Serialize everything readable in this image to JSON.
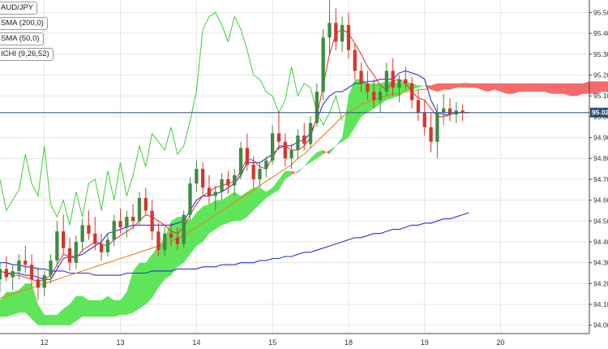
{
  "legend": [
    {
      "label": "AUD/JPY"
    },
    {
      "label": "SMA (200,0)"
    },
    {
      "label": "SMA (50,0)"
    },
    {
      "label": "ICHI (9,26,52)"
    }
  ],
  "current_price": {
    "label": "95.02",
    "value": 95.02
  },
  "colors": {
    "up": "#3d8c40",
    "down": "#d2382e",
    "sma200": "#2733d6",
    "sma50": "#f07d1e",
    "tenkan": "#e8271e",
    "kijun": "#1b1fd6",
    "chikou": "#3bd137",
    "kumo_bull": "#5fe55a",
    "kumo_bear": "#f56b6b",
    "price_line": "#2f4f7f",
    "grid": "#e6e6e6"
  },
  "chart_data": {
    "type": "line",
    "x_axis": {
      "ticks": [
        "12",
        "13",
        "14",
        "15",
        "18",
        "19",
        "20"
      ],
      "range": [
        0,
        93
      ]
    },
    "y_axis": {
      "ticks": [
        "94.00",
        "94.10",
        "94.20",
        "94.30",
        "94.40",
        "94.50",
        "94.60",
        "94.70",
        "94.80",
        "94.90",
        "95.00",
        "95.10",
        "95.20",
        "95.30",
        "95.40",
        "95.50"
      ],
      "range": [
        93.96,
        95.56
      ]
    },
    "candles": [
      [
        94.22,
        94.3,
        94.16,
        94.27
      ],
      [
        94.27,
        94.33,
        94.21,
        94.23
      ],
      [
        94.23,
        94.29,
        94.17,
        94.26
      ],
      [
        94.26,
        94.34,
        94.22,
        94.31
      ],
      [
        94.31,
        94.38,
        94.25,
        94.29
      ],
      [
        94.29,
        94.34,
        94.19,
        94.22
      ],
      [
        94.22,
        94.28,
        94.12,
        94.18
      ],
      [
        94.18,
        94.26,
        94.14,
        94.24
      ],
      [
        94.24,
        94.34,
        94.2,
        94.31
      ],
      [
        94.31,
        94.5,
        94.28,
        94.45
      ],
      [
        94.45,
        94.53,
        94.34,
        94.37
      ],
      [
        94.37,
        94.42,
        94.26,
        94.3
      ],
      [
        94.3,
        94.43,
        94.27,
        94.4
      ],
      [
        94.4,
        94.51,
        94.35,
        94.48
      ],
      [
        94.48,
        94.55,
        94.41,
        94.44
      ],
      [
        94.44,
        94.52,
        94.36,
        94.39
      ],
      [
        94.39,
        94.44,
        94.31,
        94.35
      ],
      [
        94.35,
        94.44,
        94.33,
        94.41
      ],
      [
        94.41,
        94.53,
        94.38,
        94.5
      ],
      [
        94.5,
        94.56,
        94.44,
        94.47
      ],
      [
        94.47,
        94.55,
        94.42,
        94.52
      ],
      [
        94.52,
        94.58,
        94.46,
        94.5
      ],
      [
        94.5,
        94.64,
        94.48,
        94.61
      ],
      [
        94.61,
        94.66,
        94.53,
        94.55
      ],
      [
        94.55,
        94.6,
        94.41,
        94.45
      ],
      [
        94.45,
        94.49,
        94.33,
        94.36
      ],
      [
        94.36,
        94.47,
        94.33,
        94.44
      ],
      [
        94.44,
        94.49,
        94.38,
        94.42
      ],
      [
        94.42,
        94.47,
        94.36,
        94.39
      ],
      [
        94.39,
        94.55,
        94.37,
        94.53
      ],
      [
        94.53,
        94.71,
        94.5,
        94.68
      ],
      [
        94.68,
        94.79,
        94.64,
        94.75
      ],
      [
        94.75,
        94.78,
        94.62,
        94.66
      ],
      [
        94.66,
        94.72,
        94.58,
        94.62
      ],
      [
        94.62,
        94.67,
        94.55,
        94.64
      ],
      [
        94.64,
        94.73,
        94.6,
        94.7
      ],
      [
        94.7,
        94.74,
        94.63,
        94.67
      ],
      [
        94.67,
        94.75,
        94.62,
        94.72
      ],
      [
        94.72,
        94.88,
        94.7,
        94.85
      ],
      [
        94.85,
        94.92,
        94.74,
        94.77
      ],
      [
        94.77,
        94.81,
        94.66,
        94.7
      ],
      [
        94.7,
        94.78,
        94.66,
        94.75
      ],
      [
        94.75,
        94.81,
        94.71,
        94.79
      ],
      [
        94.79,
        94.96,
        94.77,
        94.92
      ],
      [
        94.92,
        95.02,
        94.85,
        94.88
      ],
      [
        94.88,
        94.92,
        94.76,
        94.8
      ],
      [
        94.8,
        94.87,
        94.75,
        94.84
      ],
      [
        94.84,
        94.94,
        94.8,
        94.91
      ],
      [
        94.91,
        94.97,
        94.84,
        94.87
      ],
      [
        94.87,
        95.0,
        94.85,
        94.97
      ],
      [
        94.97,
        95.16,
        94.95,
        95.12
      ],
      [
        95.12,
        95.42,
        95.08,
        95.38
      ],
      [
        95.38,
        95.56,
        95.3,
        95.45
      ],
      [
        95.45,
        95.52,
        95.32,
        95.36
      ],
      [
        95.36,
        95.48,
        95.31,
        95.44
      ],
      [
        95.44,
        95.5,
        95.28,
        95.32
      ],
      [
        95.32,
        95.35,
        95.18,
        95.22
      ],
      [
        95.22,
        95.26,
        95.12,
        95.16
      ],
      [
        95.16,
        95.22,
        95.08,
        95.12
      ],
      [
        95.12,
        95.18,
        95.04,
        95.08
      ],
      [
        95.08,
        95.14,
        95.02,
        95.12
      ],
      [
        95.12,
        95.26,
        95.1,
        95.22
      ],
      [
        95.22,
        95.28,
        95.1,
        95.14
      ],
      [
        95.14,
        95.2,
        95.07,
        95.18
      ],
      [
        95.18,
        95.24,
        95.13,
        95.16
      ],
      [
        95.16,
        95.19,
        95.04,
        95.08
      ],
      [
        95.08,
        95.13,
        94.98,
        95.02
      ],
      [
        95.02,
        95.08,
        94.91,
        94.95
      ],
      [
        94.95,
        95.02,
        94.83,
        94.88
      ],
      [
        94.88,
        95.06,
        94.8,
        95.02
      ],
      [
        95.02,
        95.11,
        94.96,
        95.04
      ],
      [
        95.04,
        95.09,
        94.98,
        95.01
      ],
      [
        95.01,
        95.07,
        94.97,
        95.03
      ],
      [
        95.03,
        95.06,
        94.98,
        95.02
      ]
    ],
    "sma200": [
      94.3,
      94.3,
      94.29,
      94.29,
      94.28,
      94.28,
      94.27,
      94.27,
      94.26,
      94.26,
      94.26,
      94.25,
      94.25,
      94.25,
      94.25,
      94.24,
      94.24,
      94.24,
      94.24,
      94.24,
      94.25,
      94.25,
      94.25,
      94.25,
      94.26,
      94.26,
      94.26,
      94.26,
      94.27,
      94.27,
      94.27,
      94.27,
      94.28,
      94.28,
      94.28,
      94.29,
      94.29,
      94.29,
      94.3,
      94.3,
      94.3,
      94.31,
      94.31,
      94.32,
      94.32,
      94.33,
      94.33,
      94.34,
      94.35,
      94.35,
      94.36,
      94.37,
      94.38,
      94.39,
      94.4,
      94.41,
      94.42,
      94.42,
      94.43,
      94.44,
      94.44,
      94.45,
      94.46,
      94.46,
      94.47,
      94.48,
      94.48,
      94.49,
      94.49,
      94.5,
      94.51,
      94.51,
      94.52,
      94.53,
      94.54
    ],
    "sma50": [
      94.13,
      94.14,
      94.15,
      94.16,
      94.17,
      94.18,
      94.19,
      94.2,
      94.21,
      94.22,
      94.23,
      94.24,
      94.25,
      94.26,
      94.27,
      94.28,
      94.29,
      94.3,
      94.31,
      94.32,
      94.33,
      94.34,
      94.35,
      94.36,
      94.37,
      94.38,
      94.39,
      94.4,
      94.42,
      94.43,
      94.45,
      94.47,
      94.49,
      94.51,
      94.53,
      94.55,
      94.57,
      94.59,
      94.61,
      94.63,
      94.65,
      94.67,
      94.69,
      94.71,
      94.73,
      94.75,
      94.77,
      94.8,
      94.82,
      94.85,
      94.88,
      94.91,
      94.94,
      94.97,
      95.0,
      95.02,
      95.04,
      95.06,
      95.07,
      95.08,
      95.09,
      95.1,
      95.11,
      95.11,
      95.12,
      95.12,
      95.13,
      95.13,
      95.14,
      95.14,
      95.14,
      95.15,
      95.15,
      95.16,
      95.16
    ],
    "tenkan": [
      94.26,
      94.25,
      94.24,
      94.24,
      94.23,
      94.22,
      94.21,
      94.22,
      94.24,
      94.29,
      94.34,
      94.33,
      94.32,
      94.36,
      94.38,
      94.4,
      94.39,
      94.38,
      94.41,
      94.43,
      94.45,
      94.47,
      94.5,
      94.53,
      94.52,
      94.5,
      94.48,
      94.45,
      94.44,
      94.47,
      94.53,
      94.58,
      94.62,
      94.64,
      94.66,
      94.67,
      94.68,
      94.69,
      94.74,
      94.8,
      94.79,
      94.76,
      94.75,
      94.8,
      94.86,
      94.86,
      94.84,
      94.84,
      94.86,
      94.9,
      95.0,
      95.15,
      95.3,
      95.4,
      95.42,
      95.4,
      95.35,
      95.3,
      95.24,
      95.2,
      95.15,
      95.13,
      95.17,
      95.18,
      95.16,
      95.12,
      95.09,
      95.08,
      95.04,
      95.0,
      95.0,
      95.01,
      95.02,
      95.02,
      95.02
    ],
    "kijun": [
      94.26,
      94.25,
      94.25,
      94.25,
      94.24,
      94.24,
      94.23,
      94.22,
      94.22,
      94.27,
      94.32,
      94.33,
      94.33,
      94.34,
      94.36,
      94.38,
      94.4,
      94.44,
      94.45,
      94.46,
      94.47,
      94.48,
      94.48,
      94.48,
      94.48,
      94.48,
      94.48,
      94.48,
      94.49,
      94.5,
      94.55,
      94.6,
      94.62,
      94.62,
      94.63,
      94.64,
      94.66,
      94.68,
      94.72,
      94.78,
      94.78,
      94.78,
      94.8,
      94.82,
      94.85,
      94.86,
      94.86,
      94.88,
      94.89,
      94.92,
      94.99,
      95.06,
      95.1,
      95.12,
      95.12,
      95.14,
      95.16,
      95.16,
      95.17,
      95.17,
      95.18,
      95.18,
      95.18,
      95.21,
      95.22,
      95.21,
      95.2,
      95.18,
      95.08,
      95.02,
      95.01,
      95.01,
      95.02,
      95.02,
      95.02
    ],
    "chikou": [
      94.7,
      94.55,
      94.6,
      94.65,
      94.82,
      94.68,
      94.62,
      94.86,
      94.58,
      94.52,
      94.6,
      94.48,
      94.64,
      94.52,
      94.68,
      94.7,
      94.55,
      94.74,
      94.6,
      94.78,
      94.62,
      94.72,
      94.86,
      94.76,
      94.92,
      94.88,
      94.84,
      94.95,
      94.82,
      94.86,
      94.98,
      95.12,
      95.42,
      95.48,
      95.5,
      95.44,
      95.36,
      95.48,
      95.42,
      95.32,
      95.2,
      95.18,
      95.12,
      95.1,
      95.02,
      95.08,
      95.24,
      95.1,
      95.16,
      95.14,
      95.02,
      94.96,
      95.02,
      95.1,
      94.98
    ],
    "kumo": {
      "span_a": [
        94.12,
        94.16,
        94.16,
        94.17,
        94.2,
        94.2,
        94.1,
        94.05,
        94.05,
        94.05,
        94.08,
        94.1,
        94.14,
        94.14,
        94.12,
        94.12,
        94.12,
        94.14,
        94.12,
        94.12,
        94.16,
        94.26,
        94.3,
        94.3,
        94.34,
        94.38,
        94.42,
        94.5,
        94.52,
        94.52,
        94.5,
        94.54,
        94.57,
        94.58,
        94.6,
        94.6,
        94.62,
        94.64,
        94.62,
        94.64,
        94.66,
        94.66,
        94.64,
        94.66,
        94.7,
        94.74,
        94.74,
        94.73,
        94.76,
        94.8,
        94.83,
        94.84,
        94.82,
        94.86,
        94.9,
        95.1,
        95.18,
        95.18,
        95.16,
        95.16,
        95.16,
        95.17,
        95.17,
        95.16,
        95.17,
        95.16,
        95.15,
        95.15,
        95.13,
        95.12,
        95.13,
        95.13,
        95.14,
        95.14,
        95.14,
        95.14,
        95.13,
        95.12,
        95.13,
        95.12,
        95.11,
        95.11,
        95.12,
        95.12,
        95.12,
        95.12,
        95.12,
        95.11,
        95.11,
        95.11,
        95.1,
        95.1,
        95.11,
        95.11,
        95.11,
        95.12,
        95.12,
        95.11,
        95.11,
        95.11
      ],
      "span_b": [
        94.04,
        94.04,
        94.05,
        94.06,
        94.06,
        94.03,
        94.0,
        94.0,
        94.0,
        94.0,
        94.0,
        94.0,
        94.02,
        94.04,
        94.04,
        94.04,
        94.04,
        94.04,
        94.04,
        94.05,
        94.05,
        94.06,
        94.08,
        94.1,
        94.13,
        94.18,
        94.22,
        94.24,
        94.28,
        94.3,
        94.34,
        94.38,
        94.4,
        94.44,
        94.46,
        94.48,
        94.49,
        94.5,
        94.5,
        94.52,
        94.55,
        94.58,
        94.61,
        94.63,
        94.65,
        94.7,
        94.72,
        94.74,
        94.76,
        94.78,
        94.8,
        94.82,
        94.84,
        94.86,
        94.88,
        94.9,
        94.95,
        95.0,
        95.02,
        95.04,
        95.06,
        95.08,
        95.09,
        95.1,
        95.12,
        95.13,
        95.14,
        95.15,
        95.15,
        95.16,
        95.16,
        95.16,
        95.16,
        95.16,
        95.16,
        95.16,
        95.16,
        95.16,
        95.16,
        95.16,
        95.16,
        95.16,
        95.16,
        95.16,
        95.16,
        95.16,
        95.16,
        95.16,
        95.16,
        95.16,
        95.16,
        95.16,
        95.16,
        95.17,
        95.17,
        95.17,
        95.17,
        95.17,
        95.17,
        95.17
      ]
    }
  }
}
